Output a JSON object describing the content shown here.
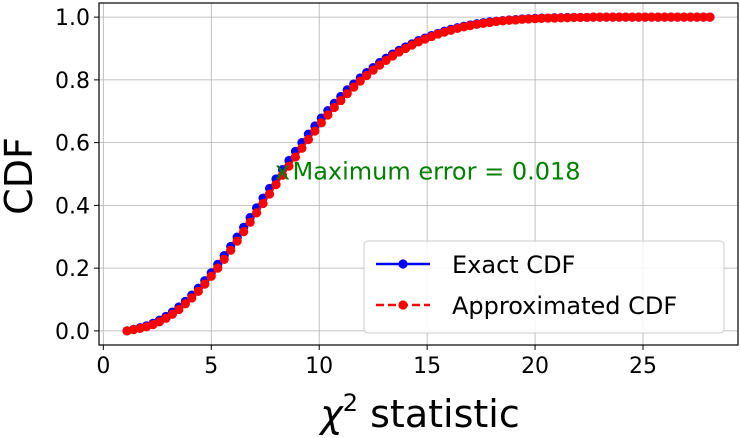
{
  "chart_data": {
    "type": "line",
    "title": "",
    "xlabel": "χ² statistic",
    "xlabel_base": "χ",
    "xlabel_sup": "2",
    "xlabel_rest": " statistic",
    "ylabel": "CDF",
    "xlim": [
      -0.2,
      29.4
    ],
    "ylim": [
      -0.045,
      1.045
    ],
    "xticks": [
      0,
      5,
      10,
      15,
      20,
      25
    ],
    "xtick_labels": [
      "0",
      "5",
      "10",
      "15",
      "20",
      "25"
    ],
    "yticks": [
      0.0,
      0.2,
      0.4,
      0.6,
      0.8,
      1.0
    ],
    "ytick_labels": [
      "0.0",
      "0.2",
      "0.4",
      "0.6",
      "0.8",
      "1.0"
    ],
    "grid": true,
    "legend_position": "lower-right",
    "x": [
      1.1,
      1.4,
      1.7,
      2.0,
      2.3,
      2.6,
      2.9,
      3.2,
      3.5,
      3.8,
      4.1,
      4.4,
      4.7,
      5.0,
      5.3,
      5.6,
      5.9,
      6.2,
      6.5,
      6.8,
      7.1,
      7.4,
      7.7,
      8.0,
      8.3,
      8.6,
      8.9,
      9.2,
      9.5,
      9.8,
      10.1,
      10.4,
      10.7,
      11.0,
      11.3,
      11.6,
      11.9,
      12.2,
      12.5,
      12.8,
      13.1,
      13.4,
      13.7,
      14.0,
      14.3,
      14.6,
      14.9,
      15.2,
      15.5,
      15.8,
      16.1,
      16.4,
      16.7,
      17.0,
      17.3,
      17.6,
      17.9,
      18.2,
      18.5,
      18.8,
      19.1,
      19.4,
      19.7,
      20.0,
      20.3,
      20.6,
      20.9,
      21.2,
      21.5,
      21.8,
      22.1,
      22.4,
      22.7,
      23.0,
      23.3,
      23.6,
      23.9,
      24.2,
      24.5,
      24.8,
      25.1,
      25.4,
      25.7,
      26.0,
      26.3,
      26.6,
      26.9,
      27.2,
      27.5,
      27.8,
      28.1
    ],
    "series": [
      {
        "name": "Exact CDF",
        "color": "#0000ff",
        "style": "solid",
        "values": [
          0.0,
          0.005,
          0.01,
          0.016,
          0.024,
          0.034,
          0.046,
          0.06,
          0.076,
          0.094,
          0.114,
          0.136,
          0.16,
          0.185,
          0.212,
          0.24,
          0.269,
          0.299,
          0.33,
          0.361,
          0.392,
          0.423,
          0.454,
          0.484,
          0.514,
          0.543,
          0.572,
          0.6,
          0.627,
          0.653,
          0.678,
          0.702,
          0.725,
          0.747,
          0.768,
          0.787,
          0.806,
          0.823,
          0.839,
          0.855,
          0.869,
          0.882,
          0.894,
          0.905,
          0.915,
          0.925,
          0.933,
          0.941,
          0.948,
          0.955,
          0.961,
          0.966,
          0.971,
          0.975,
          0.979,
          0.982,
          0.985,
          0.987,
          0.989,
          0.991,
          0.992,
          0.994,
          0.995,
          0.996,
          0.997,
          0.997,
          0.998,
          0.998,
          0.999,
          0.999,
          0.999,
          0.999,
          1.0,
          1.0,
          1.0,
          1.0,
          1.0,
          1.0,
          1.0,
          1.0,
          1.0,
          1.0,
          1.0,
          1.0,
          1.0,
          1.0,
          1.0,
          1.0,
          1.0,
          1.0,
          1.0
        ]
      },
      {
        "name": "Approximated CDF",
        "color": "#ff0000",
        "style": "dashed",
        "values": [
          0.0,
          0.004,
          0.008,
          0.013,
          0.02,
          0.029,
          0.04,
          0.053,
          0.068,
          0.086,
          0.105,
          0.126,
          0.149,
          0.174,
          0.2,
          0.228,
          0.257,
          0.286,
          0.316,
          0.346,
          0.376,
          0.406,
          0.436,
          0.466,
          0.496,
          0.525,
          0.554,
          0.582,
          0.61,
          0.637,
          0.663,
          0.688,
          0.712,
          0.734,
          0.756,
          0.777,
          0.796,
          0.814,
          0.831,
          0.847,
          0.862,
          0.876,
          0.889,
          0.9,
          0.911,
          0.921,
          0.93,
          0.938,
          0.946,
          0.952,
          0.958,
          0.964,
          0.969,
          0.973,
          0.977,
          0.98,
          0.983,
          0.986,
          0.988,
          0.99,
          0.991,
          0.993,
          0.994,
          0.995,
          0.996,
          0.997,
          0.997,
          0.998,
          0.998,
          0.999,
          0.999,
          0.999,
          1.0,
          1.0,
          1.0,
          1.0,
          1.0,
          1.0,
          1.0,
          1.0,
          1.0,
          1.0,
          1.0,
          1.0,
          1.0,
          1.0,
          1.0,
          1.0,
          1.0,
          1.0,
          1.0
        ]
      }
    ],
    "annotation": {
      "text": "Maximum error = 0.018",
      "marker": "x",
      "x": 8.3,
      "y": 0.508,
      "color": "#008000"
    }
  }
}
